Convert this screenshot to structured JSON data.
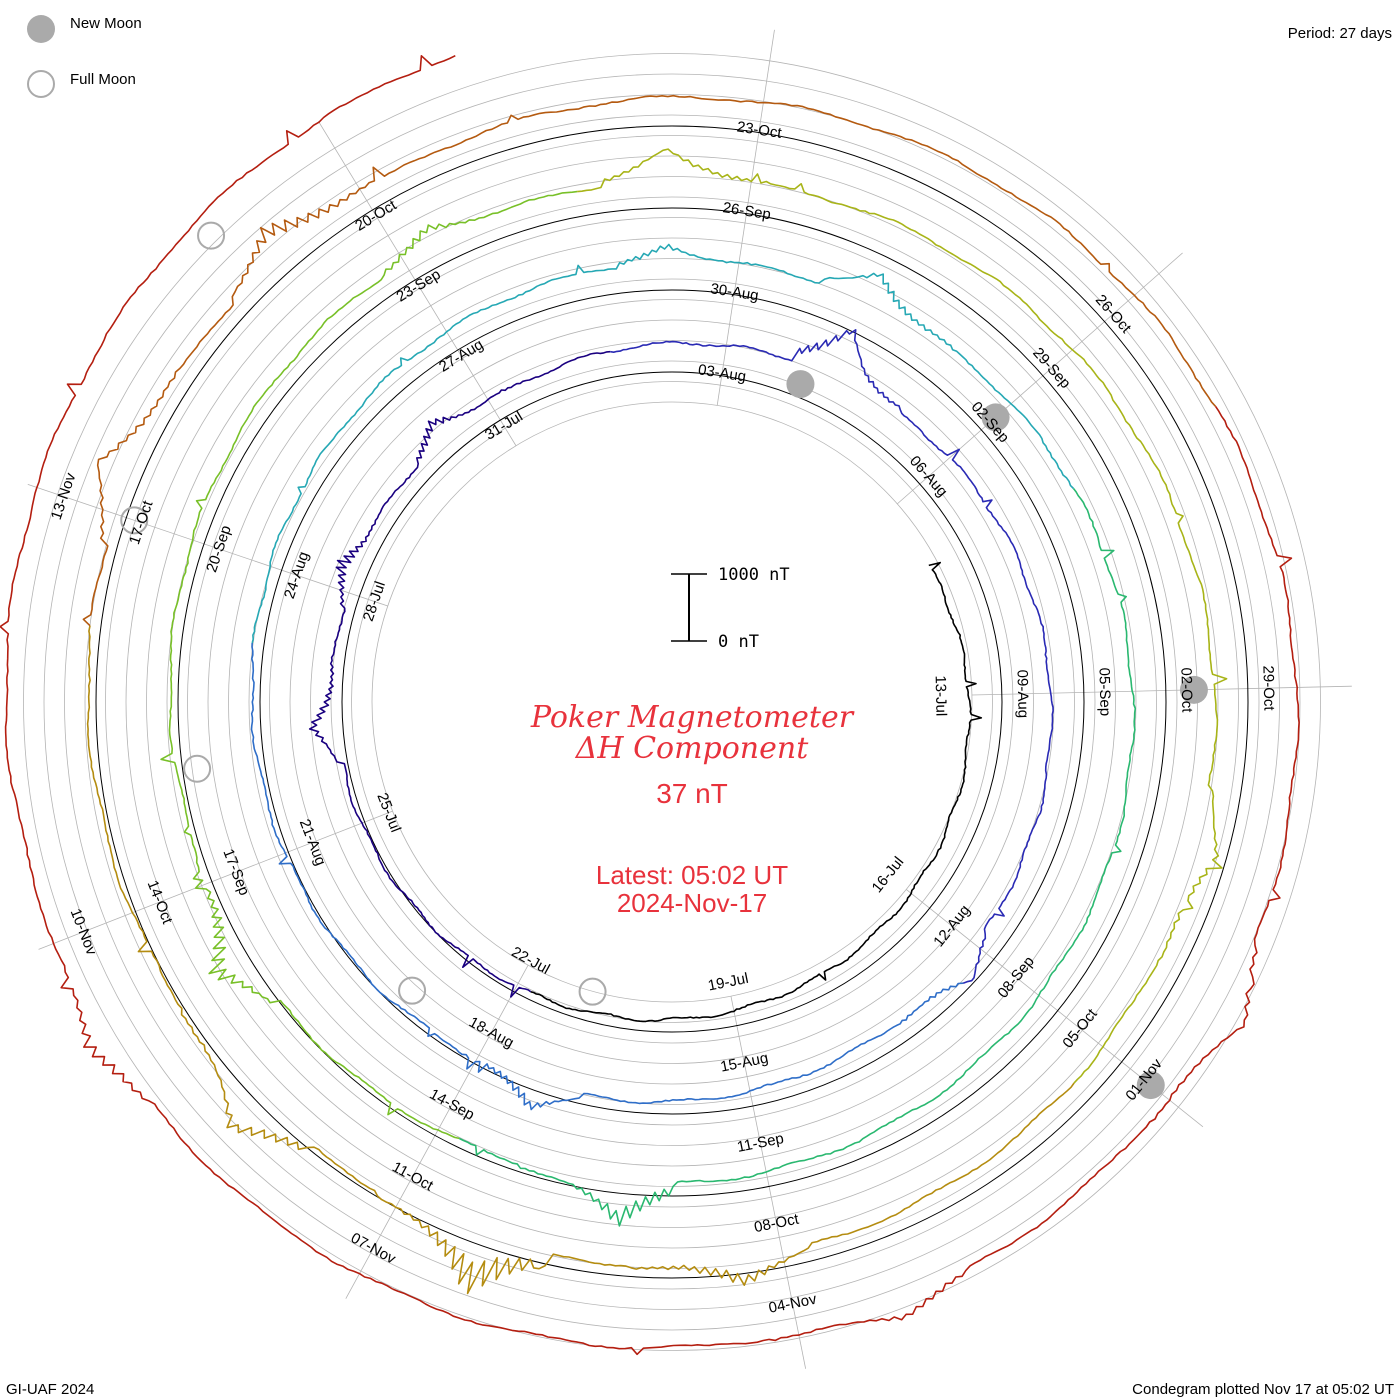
{
  "title": {
    "line1": "Poker Magnetometer",
    "line2": "ΔH Component",
    "current_value": "37 nT",
    "latest_time": "Latest: 05:02 UT",
    "latest_date": "2024-Nov-17"
  },
  "legend": {
    "new_moon": "New Moon",
    "full_moon": "Full Moon"
  },
  "period": "Period: 27 days",
  "footer": {
    "credit": "GI-UAF 2024",
    "plotted": "Condegram plotted Nov 17 at 05:02 UT"
  },
  "scale_bar": {
    "top_label": "1000 nT",
    "bottom_label": "0 nT"
  },
  "colors": {
    "accent_text": "#e8323c",
    "moon_fill": "#aaaaaa",
    "grid": "#b4b4b4",
    "ring": "#000000"
  },
  "chart_data": {
    "type": "line",
    "subtype": "condegram spiral",
    "period_days": 27,
    "start_date": "2024-07-11",
    "end_date": "2024-11-17",
    "ylabel": "ΔH (nT)",
    "scale_nT": 1000,
    "date_labels": [
      "13-Jul",
      "16-Jul",
      "19-Jul",
      "22-Jul",
      "25-Jul",
      "28-Jul",
      "31-Jul",
      "03-Aug",
      "06-Aug",
      "09-Aug",
      "12-Aug",
      "15-Aug",
      "18-Aug",
      "21-Aug",
      "24-Aug",
      "27-Aug",
      "30-Aug",
      "02-Sep",
      "05-Sep",
      "08-Sep",
      "11-Sep",
      "14-Sep",
      "17-Sep",
      "20-Sep",
      "23-Sep",
      "26-Sep",
      "29-Sep",
      "02-Oct",
      "05-Oct",
      "08-Oct",
      "11-Oct",
      "14-Oct",
      "17-Oct",
      "20-Oct",
      "23-Oct",
      "26-Oct",
      "29-Oct",
      "01-Nov",
      "04-Nov",
      "07-Nov",
      "10-Nov",
      "13-Nov"
    ],
    "new_moons": [
      "2024-08-04",
      "2024-09-02",
      "2024-10-02",
      "2024-11-01"
    ],
    "full_moons": [
      "2024-07-21",
      "2024-08-19",
      "2024-09-18",
      "2024-10-17",
      "2024-11-15"
    ],
    "series_colors": [
      "#000000",
      "#1a0080",
      "#2a2ab4",
      "#2f6ec8",
      "#26a8b4",
      "#2ab870",
      "#78c028",
      "#a8b418",
      "#b48c10",
      "#b45a10",
      "#b41e10"
    ],
    "disturbance_events": [
      {
        "date": "2024-07-26",
        "peak_nT": 420
      },
      {
        "date": "2024-07-28",
        "peak_nT": 300
      },
      {
        "date": "2024-07-30",
        "peak_nT": 350
      },
      {
        "date": "2024-08-04",
        "peak_nT": 900
      },
      {
        "date": "2024-08-12",
        "peak_nT": 360
      },
      {
        "date": "2024-08-17",
        "peak_nT": 450
      },
      {
        "date": "2024-08-29",
        "peak_nT": 260
      },
      {
        "date": "2024-08-31",
        "peak_nT": 520
      },
      {
        "date": "2024-09-12",
        "peak_nT": 700
      },
      {
        "date": "2024-09-16",
        "peak_nT": 650
      },
      {
        "date": "2024-09-23",
        "peak_nT": 300
      },
      {
        "date": "2024-09-25",
        "peak_nT": 550
      },
      {
        "date": "2024-10-03",
        "peak_nT": 350
      },
      {
        "date": "2024-10-08",
        "peak_nT": 400
      },
      {
        "date": "2024-10-10",
        "peak_nT": 900
      },
      {
        "date": "2024-10-12",
        "peak_nT": 700
      },
      {
        "date": "2024-10-17",
        "peak_nT": 600
      },
      {
        "date": "2024-10-19",
        "peak_nT": 500
      },
      {
        "date": "2024-10-31",
        "peak_nT": 450
      },
      {
        "date": "2024-11-03",
        "peak_nT": 300
      },
      {
        "date": "2024-11-09",
        "peak_nT": 350
      }
    ]
  }
}
